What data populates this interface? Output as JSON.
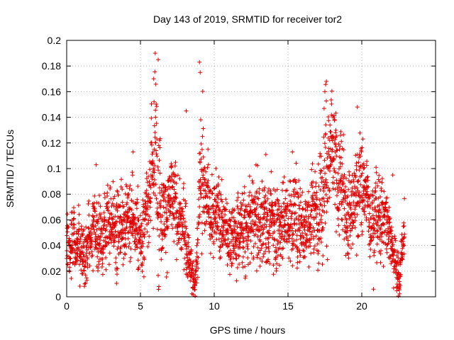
{
  "chart_data": {
    "type": "scatter",
    "title": "Day 143 of 2019, SRMTID for receiver tor2",
    "xlabel": "GPS time / hours",
    "ylabel": "SRMTID / TECUs",
    "xlim": [
      0,
      25
    ],
    "ylim": [
      0,
      0.2
    ],
    "xticks": [
      0,
      5,
      10,
      15,
      20
    ],
    "yticks": [
      0,
      0.02,
      0.04,
      0.06,
      0.08,
      0.1,
      0.12,
      0.14,
      0.16,
      0.18,
      0.2
    ],
    "grid": true,
    "marker": "+",
    "color": "#e00000",
    "sampling_interval_hours": 0.0083,
    "data_end_hours": 22.9,
    "series": [
      {
        "name": "SRMTID",
        "envelope": {
          "x": [
            0,
            0.5,
            1.0,
            1.5,
            2.0,
            2.5,
            3.0,
            3.5,
            4.0,
            4.5,
            5.0,
            5.5,
            5.8,
            6.0,
            6.2,
            6.5,
            7.0,
            7.5,
            8.0,
            8.3,
            8.5,
            8.7,
            8.9,
            9.1,
            9.3,
            9.5,
            10.0,
            10.5,
            11.0,
            12.0,
            13.0,
            14.0,
            15.0,
            15.5,
            16.0,
            16.5,
            17.0,
            17.3,
            17.6,
            18.0,
            18.5,
            19.0,
            19.5,
            19.8,
            20.0,
            20.5,
            21.0,
            21.5,
            22.0,
            22.3,
            22.5,
            22.9
          ],
          "mean": [
            0.04,
            0.045,
            0.04,
            0.042,
            0.048,
            0.05,
            0.055,
            0.058,
            0.06,
            0.055,
            0.05,
            0.07,
            0.1,
            0.11,
            0.1,
            0.075,
            0.07,
            0.065,
            0.05,
            0.035,
            0.02,
            0.008,
            0.05,
            0.1,
            0.09,
            0.075,
            0.07,
            0.06,
            0.05,
            0.055,
            0.058,
            0.06,
            0.062,
            0.065,
            0.06,
            0.06,
            0.07,
            0.09,
            0.11,
            0.1,
            0.085,
            0.075,
            0.07,
            0.095,
            0.085,
            0.07,
            0.065,
            0.062,
            0.05,
            0.03,
            0.01,
            0.055
          ],
          "spread": [
            0.015,
            0.015,
            0.016,
            0.016,
            0.018,
            0.018,
            0.018,
            0.02,
            0.022,
            0.02,
            0.02,
            0.025,
            0.035,
            0.04,
            0.04,
            0.025,
            0.022,
            0.02,
            0.02,
            0.015,
            0.012,
            0.006,
            0.02,
            0.035,
            0.03,
            0.022,
            0.02,
            0.02,
            0.018,
            0.02,
            0.02,
            0.022,
            0.022,
            0.022,
            0.02,
            0.02,
            0.022,
            0.03,
            0.035,
            0.03,
            0.025,
            0.022,
            0.022,
            0.025,
            0.025,
            0.02,
            0.02,
            0.02,
            0.018,
            0.015,
            0.01,
            0.015
          ]
        },
        "peaks": [
          {
            "x": 6.0,
            "y": 0.19
          },
          {
            "x": 6.2,
            "y": 0.185
          },
          {
            "x": 5.9,
            "y": 0.17
          },
          {
            "x": 9.0,
            "y": 0.183
          },
          {
            "x": 9.05,
            "y": 0.175
          },
          {
            "x": 17.6,
            "y": 0.168
          },
          {
            "x": 17.5,
            "y": 0.16
          },
          {
            "x": 19.7,
            "y": 0.148
          },
          {
            "x": 8.1,
            "y": 0.145
          },
          {
            "x": 4.5,
            "y": 0.113
          },
          {
            "x": 13.5,
            "y": 0.111
          },
          {
            "x": 15.3,
            "y": 0.113
          },
          {
            "x": 2.0,
            "y": 0.103
          },
          {
            "x": 22.1,
            "y": 0.095
          }
        ]
      }
    ]
  }
}
